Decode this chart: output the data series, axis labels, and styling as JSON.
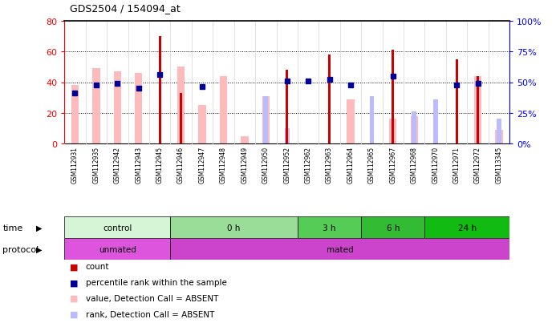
{
  "title": "GDS2504 / 154094_at",
  "samples": [
    "GSM112931",
    "GSM112935",
    "GSM112942",
    "GSM112943",
    "GSM112945",
    "GSM112946",
    "GSM112947",
    "GSM112948",
    "GSM112949",
    "GSM112950",
    "GSM112952",
    "GSM112962",
    "GSM112963",
    "GSM112964",
    "GSM112965",
    "GSM112967",
    "GSM112968",
    "GSM112970",
    "GSM112971",
    "GSM112972",
    "GSM113345"
  ],
  "count_values": [
    0,
    0,
    0,
    0,
    70,
    33,
    0,
    0,
    0,
    0,
    48,
    0,
    58,
    0,
    0,
    61,
    0,
    0,
    55,
    44,
    0
  ],
  "percentile_values": [
    33,
    38,
    39,
    36,
    45,
    0,
    37,
    0,
    0,
    0,
    41,
    41,
    42,
    38,
    0,
    44,
    0,
    0,
    38,
    39,
    0
  ],
  "absent_value_bars": [
    38,
    49,
    47,
    46,
    0,
    50,
    25,
    44,
    5,
    31,
    0,
    0,
    0,
    29,
    0,
    16,
    18,
    0,
    0,
    44,
    9
  ],
  "absent_rank_bars": [
    0,
    0,
    0,
    0,
    0,
    0,
    0,
    0,
    0,
    31,
    10,
    0,
    0,
    0,
    31,
    0,
    21,
    29,
    0,
    0,
    16
  ],
  "time_groups": [
    {
      "label": "control",
      "start": 0,
      "end": 5,
      "color": "#d6f5d6"
    },
    {
      "label": "0 h",
      "start": 5,
      "end": 11,
      "color": "#99dd99"
    },
    {
      "label": "3 h",
      "start": 11,
      "end": 14,
      "color": "#55cc55"
    },
    {
      "label": "6 h",
      "start": 14,
      "end": 17,
      "color": "#33bb33"
    },
    {
      "label": "24 h",
      "start": 17,
      "end": 21,
      "color": "#11bb11"
    }
  ],
  "protocol_groups": [
    {
      "label": "unmated",
      "start": 0,
      "end": 5,
      "color": "#dd55dd"
    },
    {
      "label": "mated",
      "start": 5,
      "end": 21,
      "color": "#cc44cc"
    }
  ],
  "ylim_left": [
    0,
    80
  ],
  "ylim_right": [
    0,
    100
  ],
  "yticks_left": [
    0,
    20,
    40,
    60,
    80
  ],
  "ytick_labels_left": [
    "0",
    "20",
    "40",
    "60",
    "80"
  ],
  "yticks_right": [
    0,
    25,
    50,
    75,
    100
  ],
  "ytick_labels_right": [
    "0%",
    "25%",
    "50%",
    "75%",
    "100%"
  ],
  "count_color": "#cc0000",
  "percentile_color": "#000099",
  "absent_value_color": "#ffbbbb",
  "absent_rank_color": "#bbbbff",
  "bg_color": "#ffffff"
}
